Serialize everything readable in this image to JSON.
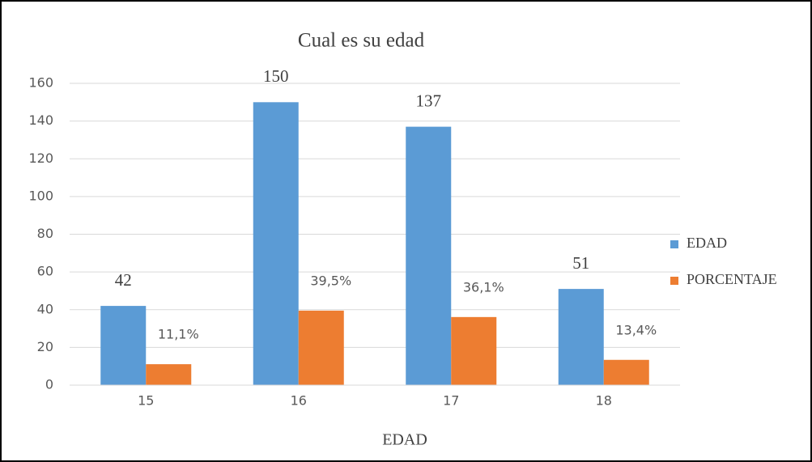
{
  "chart_data": {
    "type": "bar",
    "title": "Cual es su edad",
    "x_label": "EDAD",
    "categories": [
      "15",
      "16",
      "17",
      "18"
    ],
    "series": [
      {
        "name": "EDAD",
        "color": "#5b9bd5",
        "values": [
          42,
          150,
          137,
          51
        ]
      },
      {
        "name": "PORCENTAJE",
        "color": "#ed7d31",
        "values": [
          11.1,
          39.5,
          36.1,
          13.4
        ],
        "value_labels": [
          "11,1%",
          "39,5%",
          "36,1%",
          "13,4%"
        ]
      }
    ],
    "ylim": [
      0,
      160
    ],
    "yticks": [
      0,
      20,
      40,
      60,
      80,
      100,
      120,
      140,
      160
    ],
    "grid": true,
    "legend": "right"
  }
}
